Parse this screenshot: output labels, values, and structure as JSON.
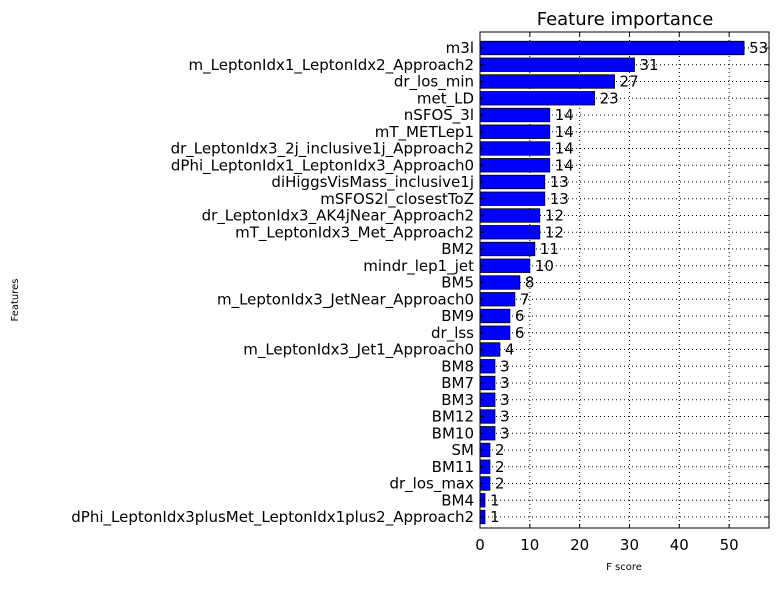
{
  "chart_data": {
    "type": "bar",
    "orientation": "horizontal",
    "title": "Feature importance",
    "xlabel": "F score",
    "ylabel": "Features",
    "xlim": [
      0,
      58
    ],
    "xticks": [
      0,
      10,
      20,
      30,
      40,
      50
    ],
    "grid": true,
    "bar_color": "#0000ff",
    "categories": [
      "m3l",
      "m_LeptonIdx1_LeptonIdx2_Approach2",
      "dr_los_min",
      "met_LD",
      "nSFOS_3l",
      "mT_METLep1",
      "dr_LeptonIdx3_2j_inclusive1j_Approach2",
      "dPhi_LeptonIdx1_LeptonIdx3_Approach0",
      "diHiggsVisMass_inclusive1j",
      "mSFOS2l_closestToZ",
      "dr_LeptonIdx3_AK4jNear_Approach2",
      "mT_LeptonIdx3_Met_Approach2",
      "BM2",
      "mindr_lep1_jet",
      "BM5",
      "m_LeptonIdx3_JetNear_Approach0",
      "BM9",
      "dr_lss",
      "m_LeptonIdx3_Jet1_Approach0",
      "BM8",
      "BM7",
      "BM3",
      "BM12",
      "BM10",
      "SM",
      "BM11",
      "dr_los_max",
      "BM4",
      "dPhi_LeptonIdx3plusMet_LeptonIdx1plus2_Approach2"
    ],
    "values": [
      53,
      31,
      27,
      23,
      14,
      14,
      14,
      14,
      13,
      13,
      12,
      12,
      11,
      10,
      8,
      7,
      6,
      6,
      4,
      3,
      3,
      3,
      3,
      3,
      2,
      2,
      2,
      1,
      1
    ]
  }
}
